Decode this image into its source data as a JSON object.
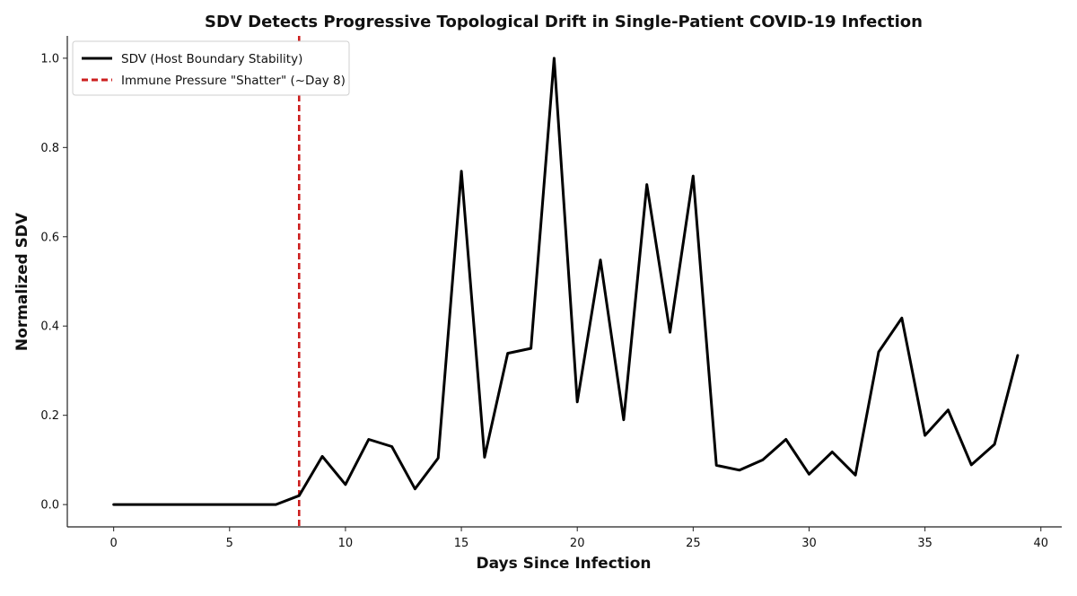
{
  "chart_data": {
    "type": "line",
    "title": "SDV Detects Progressive Topological Drift in Single-Patient COVID-19 Infection",
    "xlabel": "Days Since Infection",
    "ylabel": "Normalized SDV",
    "xlim": [
      -2,
      40.9
    ],
    "ylim": [
      -0.05,
      1.05
    ],
    "xticks": [
      0,
      5,
      10,
      15,
      20,
      25,
      30,
      35,
      40
    ],
    "yticks": [
      0.0,
      0.2,
      0.4,
      0.6,
      0.8,
      1.0
    ],
    "ytick_labels": [
      "0.0",
      "0.2",
      "0.4",
      "0.6",
      "0.8",
      "1.0"
    ],
    "grid": false,
    "legend_position": "top-left",
    "series": [
      {
        "name": "SDV (Host Boundary Stability)",
        "color": "#000000",
        "style": "solid",
        "x": [
          0,
          1,
          2,
          3,
          4,
          5,
          6,
          7,
          8,
          9,
          10,
          11,
          12,
          13,
          14,
          15,
          16,
          17,
          18,
          19,
          20,
          21,
          22,
          23,
          24,
          25,
          26,
          27,
          28,
          29,
          30,
          31,
          32,
          33,
          34,
          35,
          36,
          37,
          38,
          39
        ],
        "y": [
          0.0,
          0.0,
          0.0,
          0.0,
          0.0,
          0.0,
          0.0,
          0.0,
          0.02,
          0.108,
          0.045,
          0.146,
          0.13,
          0.035,
          0.104,
          0.747,
          0.106,
          0.339,
          0.35,
          1.0,
          0.23,
          0.548,
          0.19,
          0.717,
          0.386,
          0.736,
          0.088,
          0.077,
          0.1,
          0.146,
          0.068,
          0.118,
          0.066,
          0.342,
          0.418,
          0.155,
          0.212,
          0.089,
          0.135,
          0.334
        ]
      }
    ],
    "annotations": [
      {
        "name": "Immune Pressure \"Shatter\" (~Day 8)",
        "type": "vline",
        "x": 8,
        "color": "#cc1f1f",
        "style": "dashed"
      }
    ]
  }
}
